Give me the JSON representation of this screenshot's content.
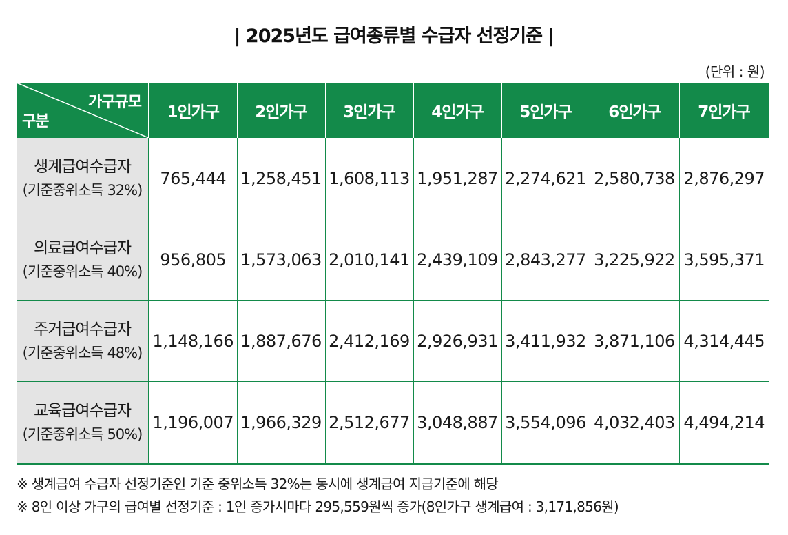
{
  "title": "|  2025년도 급여종류별 수급자 선정기준  |",
  "unit_label": "(단위 : 원)",
  "table": {
    "corner_top": "가구규모",
    "corner_bottom": "구분",
    "columns": [
      "1인가구",
      "2인가구",
      "3인가구",
      "4인가구",
      "5인가구",
      "6인가구",
      "7인가구"
    ],
    "rows": [
      {
        "label": "생계급여수급자",
        "sublabel": "(기준중위소득 32%)",
        "values": [
          "765,444",
          "1,258,451",
          "1,608,113",
          "1,951,287",
          "2,274,621",
          "2,580,738",
          "2,876,297"
        ]
      },
      {
        "label": "의료급여수급자",
        "sublabel": "(기준중위소득 40%)",
        "values": [
          "956,805",
          "1,573,063",
          "2,010,141",
          "2,439,109",
          "2,843,277",
          "3,225,922",
          "3,595,371"
        ]
      },
      {
        "label": "주거급여수급자",
        "sublabel": "(기준중위소득 48%)",
        "values": [
          "1,148,166",
          "1,887,676",
          "2,412,169",
          "2,926,931",
          "3,411,932",
          "3,871,106",
          "4,314,445"
        ]
      },
      {
        "label": "교육급여수급자",
        "sublabel": "(기준중위소득 50%)",
        "values": [
          "1,196,007",
          "1,966,329",
          "2,512,677",
          "3,048,887",
          "3,554,096",
          "4,032,403",
          "4,494,214"
        ]
      }
    ]
  },
  "notes": [
    "※ 생계급여 수급자 선정기준인 기준 중위소득 32%는 동시에 생계급여 지급기준에 해당",
    "※ 8인 이상 가구의 급여별 선정기준 : 1인 증가시마다 295,559원씩 증가(8인가구 생계급여 : 3,171,856원)"
  ],
  "colors": {
    "header_green": "#138a4a",
    "rowhead_gray": "#e4e4e4"
  }
}
